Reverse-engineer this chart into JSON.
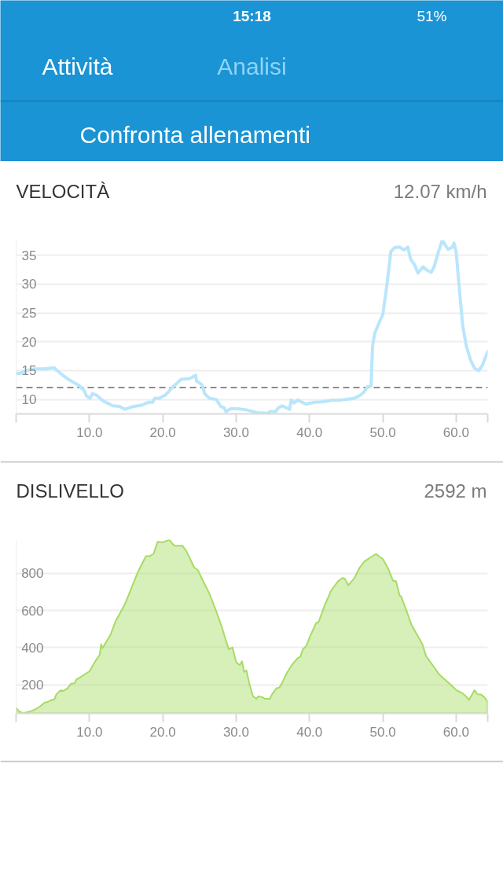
{
  "chart_data": [
    {
      "type": "other",
      "title": "Analisi",
      "annotations": [
        "Attività",
        "Confronta allenamenti",
        "15:18",
        "51%"
      ]
    },
    {
      "type": "line",
      "title": "VELOCITÀ",
      "subtitle": "12.07 km/h",
      "color": "#b9e6fb",
      "x": [
        0,
        0.5,
        1.4,
        2.5,
        3.9,
        5.2,
        5.5,
        6.25,
        7.1,
        8.6,
        9.3,
        9.6,
        10.1,
        10.4,
        10.9,
        11.8,
        13.2,
        14.1,
        14.8,
        16.1,
        17.1,
        18.0,
        18.6,
        18.9,
        19.5,
        20.4,
        21.25,
        22.5,
        23.6,
        24.1,
        24.5,
        24.6,
        25.4,
        25.7,
        26.4,
        27.3,
        27.9,
        28.4,
        28.6,
        29.3,
        30.2,
        31.4,
        32.9,
        34.3,
        34.6,
        35.4,
        35.7,
        36.25,
        37.3,
        37.5,
        37.9,
        38.4,
        39.5,
        40.7,
        42.0,
        43.2,
        44.3,
        45.5,
        46.1,
        47.0,
        47.5,
        47.9,
        48.4,
        48.6,
        48.9,
        49.5,
        50.0,
        50.5,
        51.1,
        51.6,
        52.3,
        52.9,
        53.4,
        53.8,
        54.3,
        54.8,
        55.5,
        55.9,
        56.6,
        57.0,
        57.5,
        58.1,
        58.9,
        59.5,
        59.7,
        60.0,
        60.4,
        60.9,
        61.4,
        62.0,
        62.5,
        63.1,
        63.6,
        63.9,
        64.3
      ],
      "values": [
        14.5,
        14.5,
        15.0,
        15.3,
        15.3,
        15.5,
        15.1,
        14.3,
        13.5,
        12.4,
        11.5,
        10.6,
        10.2,
        11.0,
        10.8,
        9.8,
        8.9,
        8.8,
        8.3,
        8.8,
        9.0,
        9.5,
        9.5,
        10.2,
        10.2,
        10.8,
        12.0,
        13.5,
        13.6,
        13.9,
        14.2,
        13.2,
        12.5,
        11.0,
        10.2,
        10.0,
        8.8,
        8.5,
        7.9,
        8.4,
        8.4,
        8.2,
        7.7,
        7.6,
        7.9,
        7.9,
        8.5,
        8.9,
        8.3,
        9.9,
        9.4,
        9.9,
        9.2,
        9.5,
        9.6,
        9.9,
        9.9,
        10.1,
        10.2,
        10.8,
        11.4,
        12.2,
        12.3,
        19.2,
        21.5,
        23.3,
        24.7,
        29.3,
        35.6,
        36.3,
        36.4,
        35.9,
        36.4,
        34.3,
        33.4,
        31.9,
        33.0,
        32.5,
        32.0,
        33.0,
        35.2,
        37.6,
        36.0,
        36.4,
        37.1,
        35.6,
        29.7,
        22.7,
        19.2,
        16.7,
        15.4,
        15.0,
        16.0,
        17.0,
        18.3
      ],
      "xlim": [
        0,
        64.3
      ],
      "ylim": [
        7.5,
        37.6
      ],
      "xticks": [
        {
          "value": 0,
          "label": null
        },
        {
          "value": 10,
          "label": "10.0"
        },
        {
          "value": 20,
          "label": "20.0"
        },
        {
          "value": 30,
          "label": "30.0"
        },
        {
          "value": 40,
          "label": "40.0"
        },
        {
          "value": 50,
          "label": "50.0"
        },
        {
          "value": 60,
          "label": "60.0"
        },
        {
          "value": 64.3,
          "label": null
        }
      ],
      "yticks": [
        10,
        15,
        20,
        25,
        30,
        35
      ],
      "grid": "y",
      "ref_lines": [
        {
          "axis": "y",
          "value": 12.07,
          "color": "#8c8c8c",
          "line_style": "dashed"
        }
      ]
    },
    {
      "type": "area",
      "title": "DISLIVELLO",
      "subtitle": "2592 m",
      "color": "#a6dc63",
      "x": [
        0,
        0.36,
        0.9,
        1.4,
        2.0,
        2.5,
        3.2,
        3.9,
        4.3,
        4.8,
        5.2,
        5.5,
        6.1,
        6.4,
        7.0,
        7.5,
        8.0,
        8.2,
        8.9,
        10.0,
        10.9,
        11.4,
        11.6,
        11.8,
        12.1,
        12.9,
        13.6,
        14.1,
        14.8,
        15.7,
        16.6,
        17.7,
        18.2,
        18.75,
        19.3,
        20.0,
        20.9,
        21.4,
        21.7,
        22.7,
        23.2,
        24.3,
        24.8,
        25.5,
        26.4,
        27.3,
        28.0,
        28.6,
        29.0,
        29.5,
        30.0,
        30.5,
        30.8,
        31.1,
        31.4,
        31.8,
        32.3,
        32.8,
        33.0,
        33.6,
        33.9,
        34.6,
        34.9,
        35.5,
        35.9,
        36.25,
        37.0,
        37.7,
        38.4,
        38.75,
        39.1,
        39.6,
        40.0,
        40.9,
        41.25,
        42.1,
        42.5,
        42.9,
        43.9,
        44.5,
        44.8,
        45.3,
        46.1,
        46.8,
        47.5,
        48.4,
        49.1,
        49.6,
        50.0,
        50.7,
        51.4,
        51.8,
        52.3,
        52.5,
        53.2,
        53.9,
        54.8,
        55.4,
        55.9,
        56.8,
        57.7,
        58.2,
        59.3,
        60.0,
        60.75,
        61.25,
        61.75,
        62.5,
        62.9,
        63.4,
        63.8,
        64.3
      ],
      "values": [
        77,
        59,
        49,
        52,
        59,
        66,
        83,
        105,
        108,
        119,
        122,
        150,
        172,
        167,
        182,
        207,
        210,
        228,
        245,
        273,
        334,
        362,
        419,
        398,
        419,
        472,
        546,
        581,
        631,
        718,
        807,
        892,
        892,
        906,
        969,
        967,
        981,
        955,
        948,
        948,
        920,
        831,
        817,
        758,
        687,
        595,
        518,
        440,
        391,
        402,
        323,
        306,
        327,
        270,
        278,
        207,
        139,
        126,
        139,
        134,
        125,
        125,
        150,
        182,
        186,
        210,
        270,
        313,
        344,
        351,
        391,
        412,
        454,
        532,
        539,
        631,
        666,
        704,
        758,
        775,
        772,
        736,
        772,
        828,
        864,
        888,
        904,
        888,
        878,
        828,
        760,
        758,
        680,
        676,
        602,
        525,
        461,
        419,
        355,
        306,
        256,
        238,
        200,
        172,
        158,
        143,
        119,
        172,
        150,
        148,
        136,
        111
      ],
      "xlim": [
        0,
        64.3
      ],
      "ylim": [
        47,
        981
      ],
      "xticks": [
        {
          "value": 0,
          "label": null
        },
        {
          "value": 10,
          "label": "10.0"
        },
        {
          "value": 20,
          "label": "20.0"
        },
        {
          "value": 30,
          "label": "30.0"
        },
        {
          "value": 40,
          "label": "40.0"
        },
        {
          "value": 50,
          "label": "50.0"
        },
        {
          "value": 60,
          "label": "60.0"
        },
        {
          "value": 64.3,
          "label": null
        }
      ],
      "yticks": [
        200,
        400,
        600,
        800
      ],
      "grid": "y"
    }
  ]
}
